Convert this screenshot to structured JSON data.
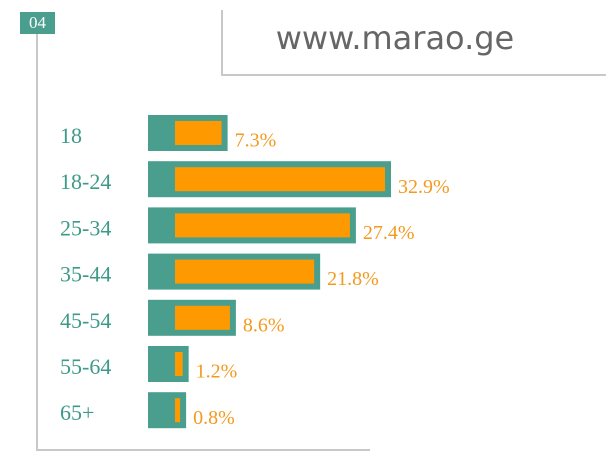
{
  "badge": "04",
  "chart_data": {
    "type": "bar",
    "title": "www.marao.ge",
    "categories": [
      "18",
      "18-24",
      "25-34",
      "35-44",
      "45-54",
      "55-64",
      "65+"
    ],
    "values": [
      7.3,
      32.9,
      27.4,
      21.8,
      8.6,
      1.2,
      0.8
    ],
    "value_labels": [
      "7.3%",
      "32.9%",
      "27.4%",
      "21.8%",
      "8.6%",
      "1.2%",
      "0.8%"
    ],
    "color": "#ff9900",
    "frame_color": "#4a9e8e"
  }
}
